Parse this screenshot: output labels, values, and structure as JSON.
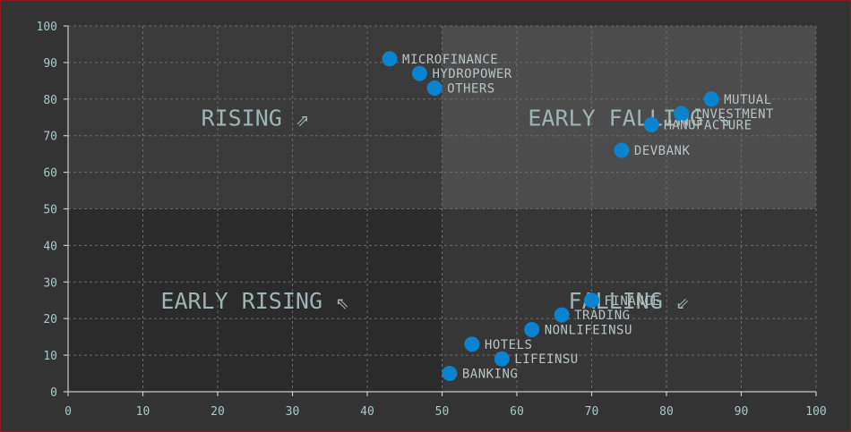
{
  "chart_data": {
    "type": "scatter",
    "title": "",
    "xlabel": "",
    "ylabel": "",
    "xlim": [
      0,
      100
    ],
    "ylim": [
      0,
      100
    ],
    "x_ticks": [
      0,
      10,
      20,
      30,
      40,
      50,
      60,
      70,
      80,
      90,
      100
    ],
    "y_ticks": [
      0,
      10,
      20,
      30,
      40,
      50,
      60,
      70,
      80,
      90,
      100
    ],
    "grid": true,
    "point_color": "#0a84d0",
    "quadrants": [
      {
        "name": "RISING ⇗",
        "x_range": [
          0,
          50
        ],
        "y_range": [
          50,
          100
        ],
        "color": "#3b3b3b"
      },
      {
        "name": "EARLY FALLING ⇘",
        "x_range": [
          50,
          100
        ],
        "y_range": [
          50,
          100
        ],
        "color": "#4c4c4c"
      },
      {
        "name": "EARLY RISING ⇖",
        "x_range": [
          0,
          50
        ],
        "y_range": [
          0,
          50
        ],
        "color": "#2b2b2b"
      },
      {
        "name": "FALLING ⇙",
        "x_range": [
          50,
          100
        ],
        "y_range": [
          0,
          50
        ],
        "color": "#363636"
      }
    ],
    "points": [
      {
        "label": "MICROFINANCE",
        "x": 43,
        "y": 91
      },
      {
        "label": "HYDROPOWER",
        "x": 47,
        "y": 87
      },
      {
        "label": "OTHERS",
        "x": 49,
        "y": 83
      },
      {
        "label": "MUTUAL",
        "x": 86,
        "y": 80
      },
      {
        "label": "INVESTMENT",
        "x": 82,
        "y": 76
      },
      {
        "label": "MANUFACTURE",
        "x": 78,
        "y": 73
      },
      {
        "label": "DEVBANK",
        "x": 74,
        "y": 66
      },
      {
        "label": "FINANCE",
        "x": 70,
        "y": 25
      },
      {
        "label": "TRADING",
        "x": 66,
        "y": 21
      },
      {
        "label": "NONLIFEINSU",
        "x": 62,
        "y": 17
      },
      {
        "label": "HOTELS",
        "x": 54,
        "y": 13
      },
      {
        "label": "LIFEINSU",
        "x": 58,
        "y": 9
      },
      {
        "label": "BANKING",
        "x": 51,
        "y": 5
      }
    ]
  }
}
